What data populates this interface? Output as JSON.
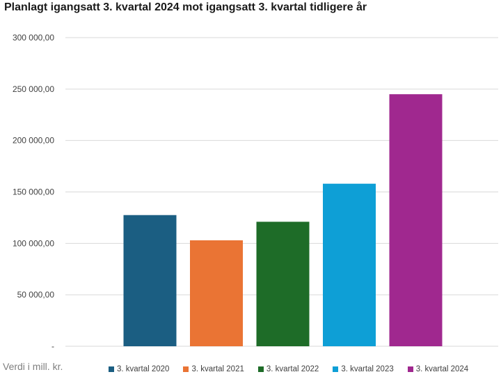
{
  "chart_data": {
    "type": "bar",
    "title": "Planlagt igangsatt 3. kvartal 2024 mot igangsatt 3. kvartal tidligere år",
    "xlabel": "",
    "ylabel": "",
    "units_note": "Verdi i mill. kr.",
    "ylim": [
      0,
      300000
    ],
    "yticks": [
      {
        "value": 0,
        "label": "-"
      },
      {
        "value": 50000,
        "label": "50 000,00"
      },
      {
        "value": 100000,
        "label": "100 000,00"
      },
      {
        "value": 150000,
        "label": "150 000,00"
      },
      {
        "value": 200000,
        "label": "200 000,00"
      },
      {
        "value": 250000,
        "label": "250 000,00"
      },
      {
        "value": 300000,
        "label": "300 000,00"
      }
    ],
    "grid": true,
    "legend_position": "bottom",
    "series": [
      {
        "name": "3. kvartal 2020",
        "value": 127500,
        "color": "#1b5e82"
      },
      {
        "name": "3. kvartal 2021",
        "value": 103000,
        "color": "#ea7434"
      },
      {
        "name": "3. kvartal 2022",
        "value": 121000,
        "color": "#1e6c28"
      },
      {
        "name": "3. kvartal 2023",
        "value": 158000,
        "color": "#0e9fd6"
      },
      {
        "name": "3. kvartal 2024",
        "value": 245000,
        "color": "#a0288f"
      }
    ]
  }
}
